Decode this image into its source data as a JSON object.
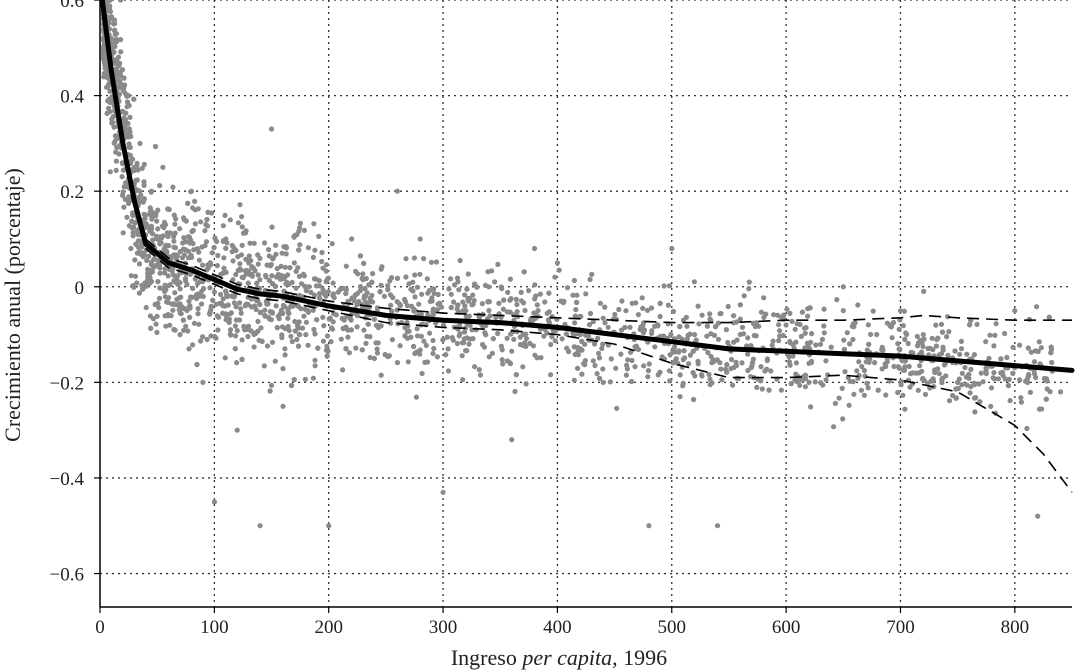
{
  "chart_data": {
    "type": "scatter",
    "xlabel_parts": [
      "Ingreso ",
      "per capita",
      ", 1996"
    ],
    "ylabel": "Crecimiento anual (porcentaje)",
    "xlim": [
      0,
      850
    ],
    "ylim": [
      -0.67,
      0.6
    ],
    "xticks": [
      0,
      100,
      200,
      300,
      400,
      500,
      600,
      700,
      800
    ],
    "yticks": [
      0.6,
      0.4,
      0.2,
      0,
      -0.2,
      -0.4,
      -0.6
    ],
    "ytick_labels": [
      "0.6",
      "0.4",
      "0.2",
      "0",
      "−0.2",
      "−0.4",
      "−0.6"
    ],
    "grid": true,
    "colors": {
      "points": "#8a8a8a",
      "fit": "#000000",
      "band": "#000000"
    },
    "fit_line": {
      "x": [
        2,
        10,
        20,
        30,
        40,
        50,
        60,
        80,
        100,
        120,
        140,
        160,
        200,
        250,
        300,
        350,
        400,
        450,
        500,
        550,
        600,
        650,
        700,
        750,
        800,
        850
      ],
      "y": [
        0.6,
        0.45,
        0.3,
        0.18,
        0.09,
        0.07,
        0.05,
        0.035,
        0.015,
        -0.005,
        -0.015,
        -0.02,
        -0.04,
        -0.06,
        -0.07,
        -0.075,
        -0.085,
        -0.1,
        -0.115,
        -0.13,
        -0.135,
        -0.14,
        -0.145,
        -0.155,
        -0.165,
        -0.175
      ]
    },
    "upper_band": {
      "x": [
        40,
        60,
        80,
        100,
        120,
        140,
        160,
        200,
        250,
        300,
        350,
        400,
        450,
        500,
        550,
        600,
        650,
        700,
        720,
        750,
        800,
        850
      ],
      "y": [
        0.1,
        0.06,
        0.045,
        0.025,
        0.005,
        -0.005,
        -0.01,
        -0.03,
        -0.045,
        -0.055,
        -0.06,
        -0.065,
        -0.07,
        -0.075,
        -0.075,
        -0.07,
        -0.07,
        -0.065,
        -0.06,
        -0.065,
        -0.07,
        -0.07
      ]
    },
    "lower_band": {
      "x": [
        40,
        60,
        80,
        100,
        120,
        140,
        160,
        200,
        250,
        300,
        350,
        400,
        450,
        500,
        550,
        600,
        650,
        700,
        750,
        800,
        825,
        850
      ],
      "y": [
        0.08,
        0.04,
        0.025,
        0.005,
        -0.015,
        -0.025,
        -0.03,
        -0.05,
        -0.075,
        -0.085,
        -0.09,
        -0.1,
        -0.12,
        -0.16,
        -0.19,
        -0.19,
        -0.185,
        -0.195,
        -0.22,
        -0.29,
        -0.35,
        -0.43
      ]
    },
    "points_sample": {
      "x": [
        5,
        8,
        12,
        15,
        18,
        22,
        25,
        30,
        35,
        40,
        45,
        50,
        55,
        60,
        65,
        70,
        80,
        90,
        100,
        110,
        120,
        130,
        140,
        150,
        160,
        170,
        180,
        200,
        220,
        240,
        260,
        280,
        300,
        320,
        340,
        360,
        380,
        400,
        420,
        440,
        460,
        480,
        500,
        520,
        540,
        600,
        620,
        650,
        700,
        720,
        750,
        800,
        820,
        840
      ],
      "y": [
        0.58,
        0.5,
        0.55,
        0.45,
        0.6,
        0.35,
        0.4,
        0.25,
        0.3,
        0.15,
        0.2,
        0.1,
        0.25,
        0.05,
        0.15,
        -0.1,
        0.2,
        -0.2,
        -0.45,
        0.1,
        -0.3,
        0.05,
        -0.5,
        0.33,
        -0.25,
        0.05,
        -0.1,
        -0.5,
        0.1,
        -0.15,
        0.2,
        0.1,
        -0.43,
        -0.05,
        0.0,
        -0.32,
        0.08,
        0.05,
        -0.1,
        -0.2,
        -0.05,
        -0.5,
        0.08,
        -0.1,
        -0.5,
        -0.08,
        -0.2,
        0.0,
        -0.05,
        -0.1,
        -0.2,
        -0.05,
        -0.48,
        -0.22
      ]
    }
  }
}
